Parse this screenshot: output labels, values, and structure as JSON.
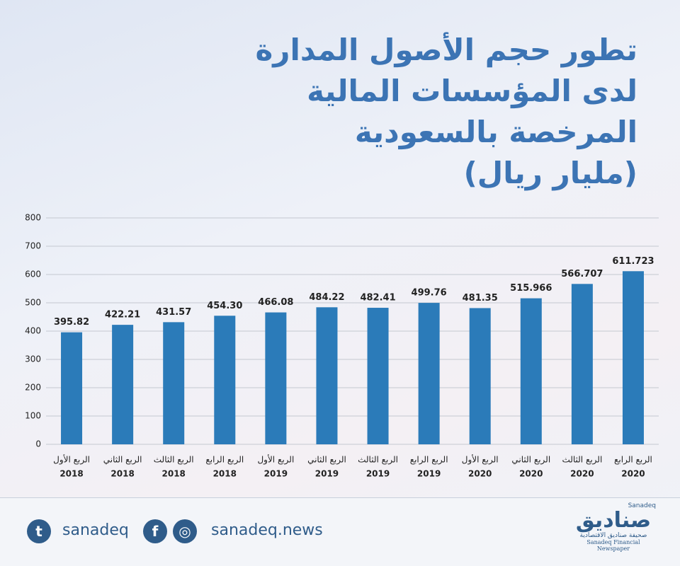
{
  "chart_data": {
    "type": "bar",
    "title": [
      "تطور حجم الأصول المدارة",
      "لدى المؤسسات المالية",
      "المرخصة بالسعودية",
      "(مليار ريال)"
    ],
    "categories": [
      [
        "الربع الأول",
        "2018"
      ],
      [
        "الربع الثاني",
        "2018"
      ],
      [
        "الربع الثالث",
        "2018"
      ],
      [
        "الربع الرابع",
        "2018"
      ],
      [
        "الربع الأول",
        "2019"
      ],
      [
        "الربع الثاني",
        "2019"
      ],
      [
        "الربع الثالث",
        "2019"
      ],
      [
        "الربع الرابع",
        "2019"
      ],
      [
        "الربع الأول",
        "2020"
      ],
      [
        "الربع الثاني",
        "2020"
      ],
      [
        "الربع الثالث",
        "2020"
      ],
      [
        "الربع الرابع",
        "2020"
      ]
    ],
    "values": [
      395.82,
      422.21,
      431.57,
      454.3,
      466.08,
      484.22,
      482.41,
      499.76,
      481.35,
      515.966,
      566.707,
      611.723
    ],
    "value_labels": [
      "395.82",
      "422.21",
      "431.57",
      "454.30",
      "466.08",
      "484.22",
      "482.41",
      "499.76",
      "481.35",
      "515.966",
      "566.707",
      "611.723"
    ],
    "color": "#2b7bb9",
    "ylim": [
      0,
      800
    ],
    "yticks": [
      0,
      100,
      200,
      300,
      400,
      500,
      600,
      700,
      800
    ],
    "grid": true
  },
  "footer": {
    "twitter": "sanadeq",
    "website": "sanadeq.news",
    "logo": "صناديق",
    "logo_latin": "Sanadeq",
    "tagline": "صحيفة صناديق الاقتصادية",
    "tagline_latin": "Sanadeq Financial Newspaper"
  }
}
